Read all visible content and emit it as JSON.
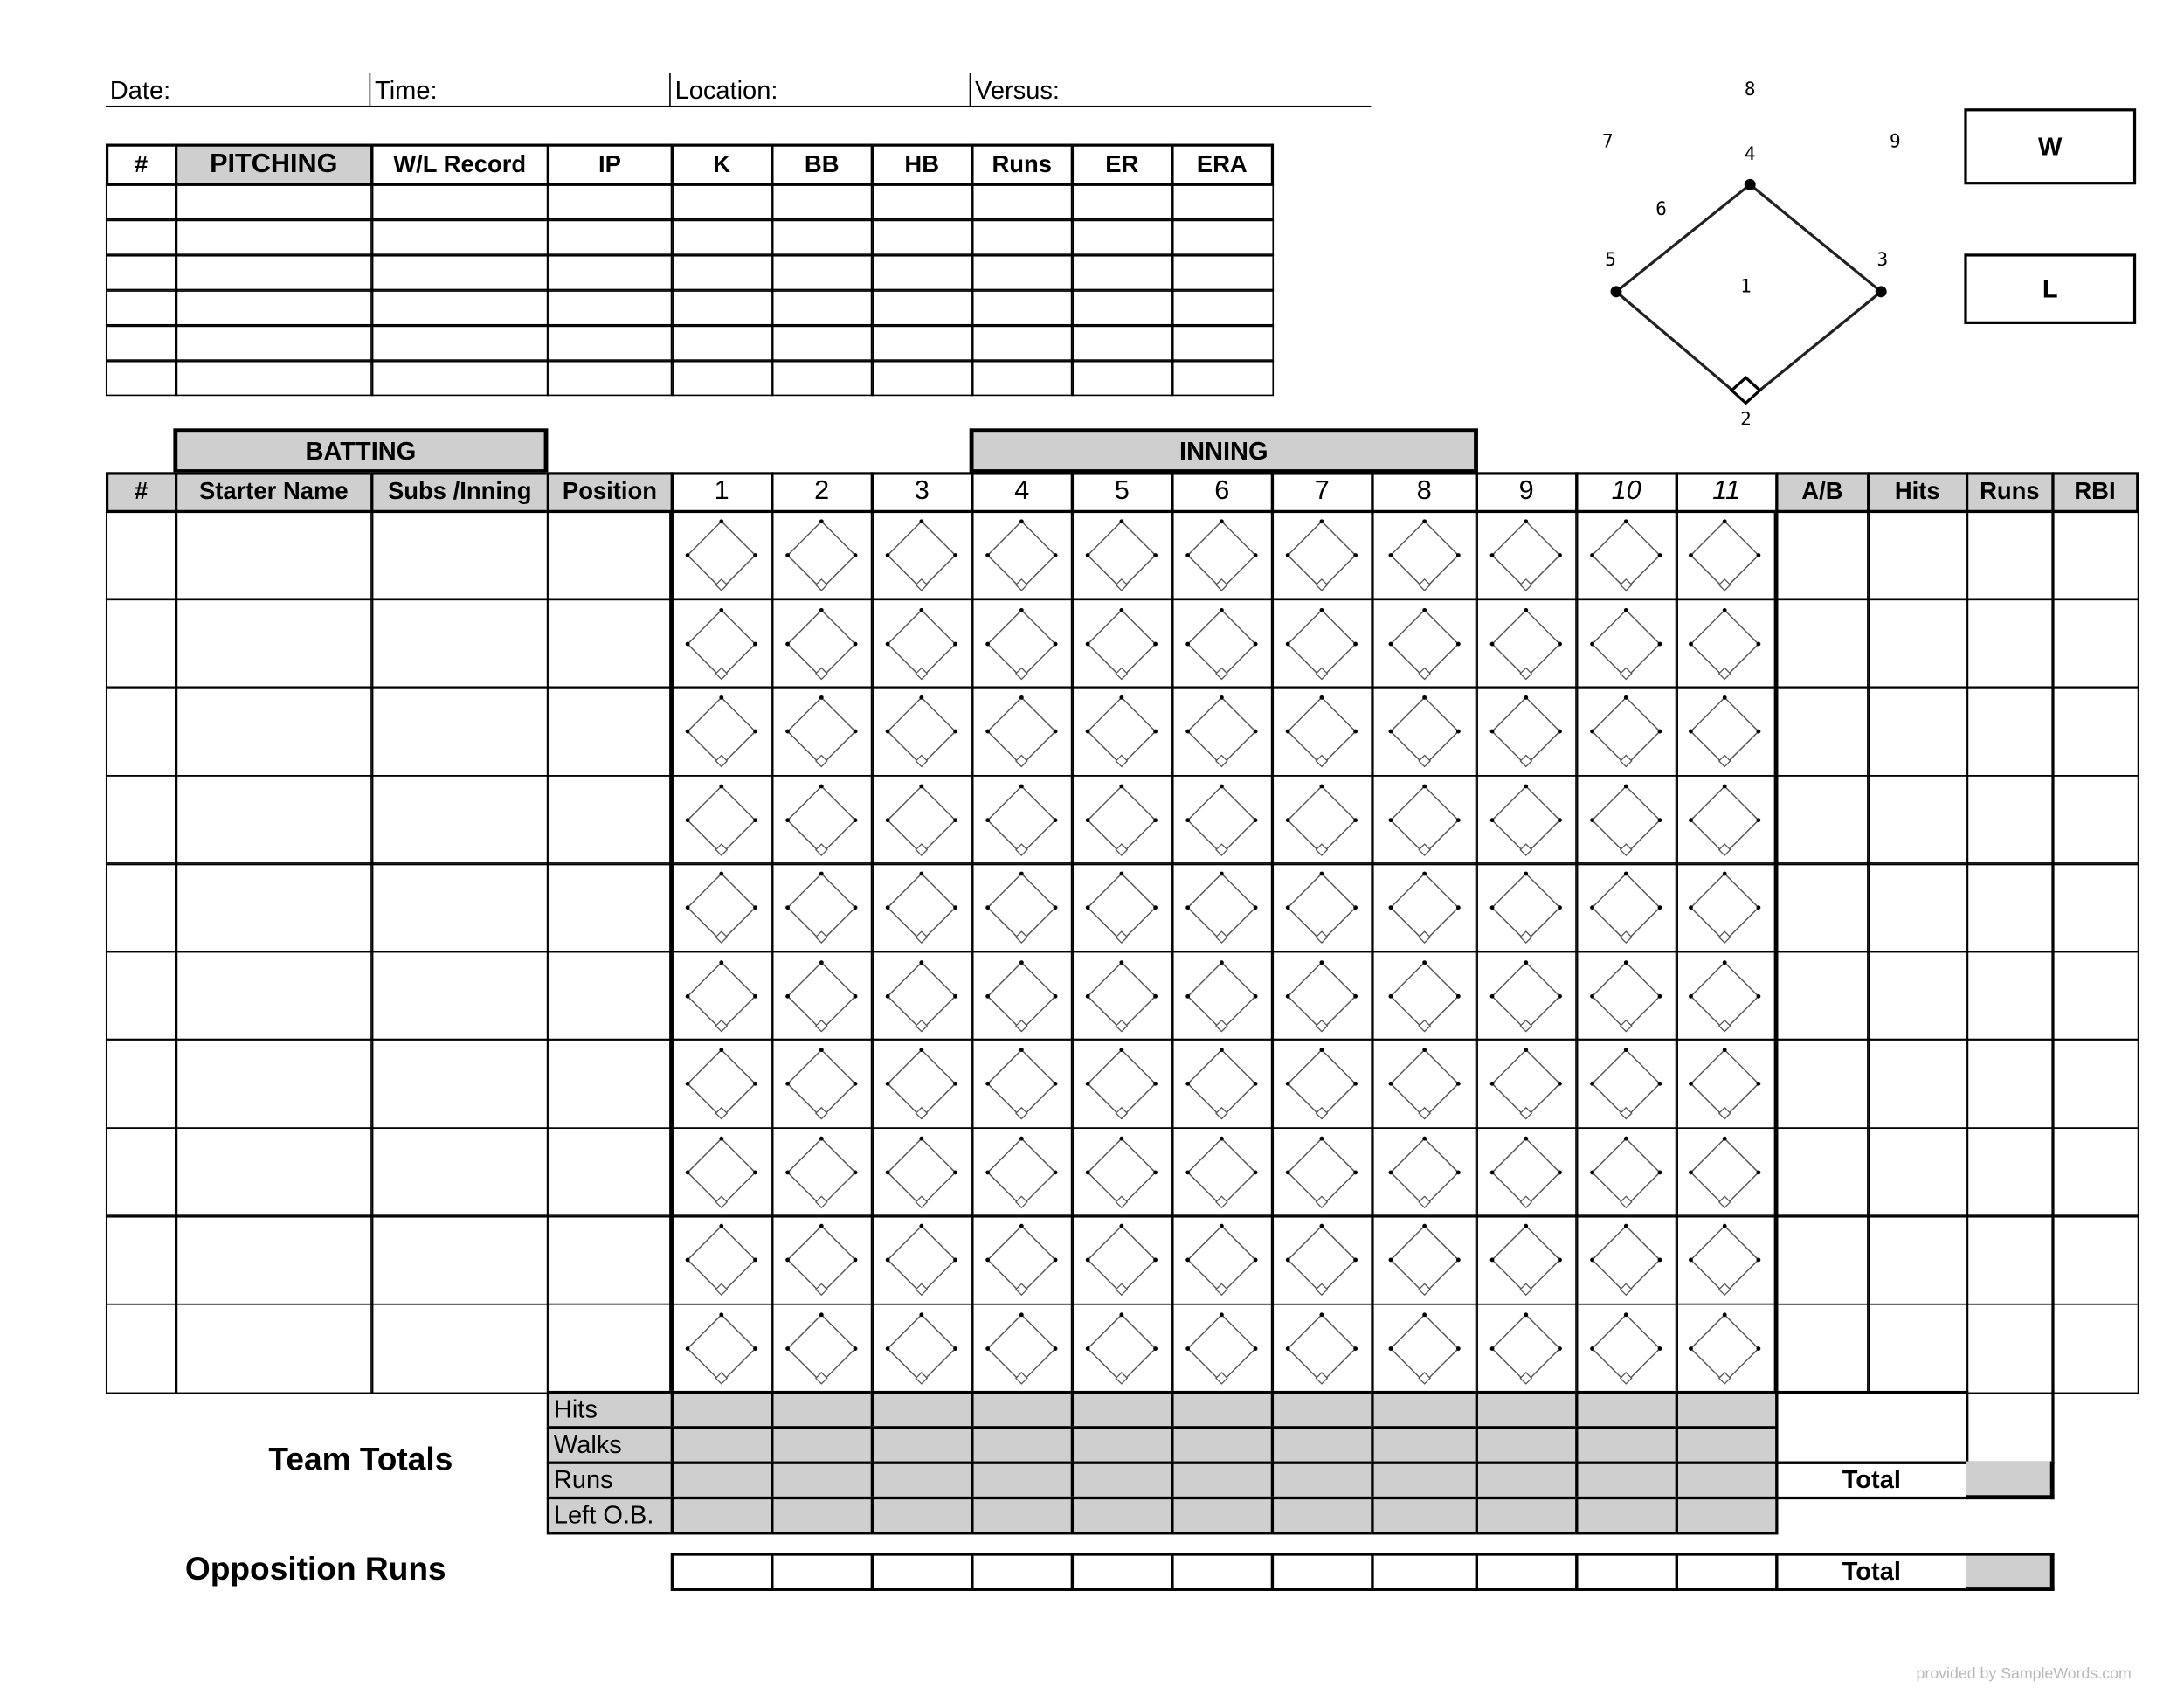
{
  "header_fields": [
    {
      "label": "Date:"
    },
    {
      "label": "Time:"
    },
    {
      "label": "Location:"
    },
    {
      "label": "Versus:"
    }
  ],
  "pitching": {
    "columns": [
      "#",
      "PITCHING",
      "W/L Record",
      "IP",
      "K",
      "BB",
      "HB",
      "Runs",
      "ER",
      "ERA"
    ],
    "row_count": 6
  },
  "field_diagram": {
    "positions": [
      "1",
      "2",
      "3",
      "4",
      "5",
      "6",
      "7",
      "8",
      "9"
    ]
  },
  "result_boxes": {
    "win": "W",
    "loss": "L"
  },
  "batting": {
    "title": "BATTING",
    "inning_title": "INNING",
    "columns": [
      "#",
      "Starter Name",
      "Subs /Inning",
      "Position"
    ],
    "innings": [
      "1",
      "2",
      "3",
      "4",
      "5",
      "6",
      "7",
      "8",
      "9",
      "10",
      "11"
    ],
    "stat_columns": [
      "A/B",
      "Hits",
      "Runs",
      "RBI"
    ],
    "row_count": 10
  },
  "team_totals": {
    "title": "Team Totals",
    "rows": [
      "Hits",
      "Walks",
      "Runs",
      "Left O.B."
    ],
    "total_label": "Total"
  },
  "opposition": {
    "title": "Opposition Runs",
    "total_label": "Total"
  },
  "watermark": "provided by SampleWords.com",
  "colors": {
    "header_fill": "#cfcfcf",
    "line": "#000000"
  }
}
